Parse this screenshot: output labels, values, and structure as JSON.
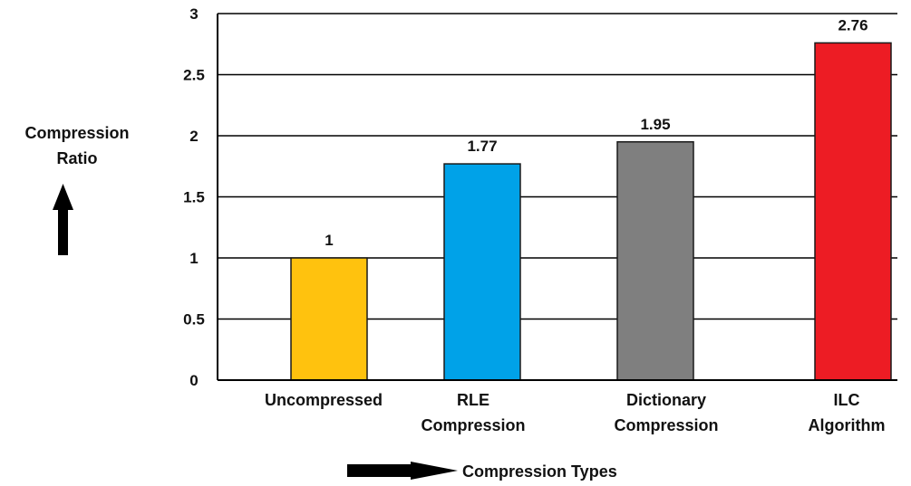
{
  "chart_data": {
    "type": "bar",
    "categories": [
      [
        "Uncompressed"
      ],
      [
        "RLE",
        "Compression"
      ],
      [
        "Dictionary",
        "Compression"
      ],
      [
        "ILC",
        "Algorithm"
      ]
    ],
    "values": [
      1,
      1.77,
      1.95,
      2.76
    ],
    "data_labels": [
      "1",
      "1.77",
      "1.95",
      "2.76"
    ],
    "bar_colors": [
      "#FFC20E",
      "#00A2E8",
      "#7F7F7F",
      "#ED1C24"
    ],
    "yticks": [
      "0",
      "0.5",
      "1",
      "1.5",
      "2",
      "2.5",
      "3"
    ],
    "ylim": [
      0,
      3
    ],
    "ylabel": [
      "Compression",
      "Ratio"
    ],
    "xlabel": "Compression Types",
    "title": "",
    "grid": true
  }
}
